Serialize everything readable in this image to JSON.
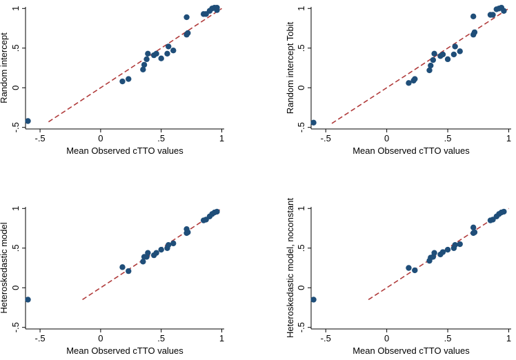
{
  "chart_data": [
    {
      "type": "scatter",
      "xlabel": "Mean Observed cTTO values",
      "ylabel": "Random intercept",
      "xlim": [
        -0.62,
        1.02
      ],
      "ylim": [
        -0.52,
        1.02
      ],
      "xticks": [
        -0.5,
        0,
        0.5,
        1
      ],
      "xtick_labels": [
        "-.5",
        "0",
        ".5",
        "1"
      ],
      "yticks": [
        -0.5,
        0,
        0.5,
        1
      ],
      "ytick_labels": [
        "-.5",
        "0",
        ".5",
        "1"
      ],
      "fit_line": {
        "x": [
          -0.43,
          1.0
        ],
        "y": [
          -0.43,
          1.0
        ]
      },
      "points": {
        "x": [
          -0.6,
          0.18,
          0.23,
          0.35,
          0.36,
          0.38,
          0.39,
          0.44,
          0.46,
          0.5,
          0.55,
          0.56,
          0.6,
          0.71,
          0.71,
          0.72,
          0.85,
          0.87,
          0.9,
          0.92,
          0.94,
          0.96,
          0.96
        ],
        "y": [
          -0.42,
          0.08,
          0.11,
          0.23,
          0.29,
          0.36,
          0.43,
          0.41,
          0.43,
          0.37,
          0.43,
          0.52,
          0.47,
          0.67,
          0.89,
          0.69,
          0.93,
          0.93,
          0.97,
          1.0,
          1.01,
          0.98,
          1.01
        ]
      }
    },
    {
      "type": "scatter",
      "xlabel": "Mean Observed cTTO values",
      "ylabel": "Random intercept Tobit",
      "xlim": [
        -0.62,
        1.02
      ],
      "ylim": [
        -0.52,
        1.02
      ],
      "xticks": [
        -0.5,
        0,
        0.5,
        1
      ],
      "xtick_labels": [
        "-.5",
        "0",
        ".5",
        "1"
      ],
      "yticks": [
        -0.5,
        0,
        0.5,
        1
      ],
      "ytick_labels": [
        "-.5",
        "0",
        ".5",
        "1"
      ],
      "fit_line": {
        "x": [
          -0.45,
          1.0
        ],
        "y": [
          -0.45,
          1.0
        ]
      },
      "points": {
        "x": [
          -0.6,
          0.18,
          0.22,
          0.23,
          0.35,
          0.36,
          0.38,
          0.39,
          0.44,
          0.46,
          0.5,
          0.55,
          0.56,
          0.6,
          0.71,
          0.71,
          0.72,
          0.85,
          0.87,
          0.9,
          0.92,
          0.94,
          0.96
        ],
        "y": [
          -0.44,
          0.06,
          0.09,
          0.11,
          0.22,
          0.28,
          0.35,
          0.43,
          0.4,
          0.42,
          0.36,
          0.42,
          0.52,
          0.46,
          0.67,
          0.9,
          0.7,
          0.92,
          0.92,
          0.99,
          1.0,
          1.01,
          0.97
        ]
      }
    },
    {
      "type": "scatter",
      "xlabel": "Mean Observed cTTO values",
      "ylabel": "Heteroskedastic model",
      "xlim": [
        -0.62,
        1.02
      ],
      "ylim": [
        -0.52,
        1.02
      ],
      "xticks": [
        -0.5,
        0,
        0.5,
        1
      ],
      "xtick_labels": [
        "-.5",
        "0",
        ".5",
        "1"
      ],
      "yticks": [
        -0.5,
        0,
        0.5,
        1
      ],
      "ytick_labels": [
        "-.5",
        "0",
        ".5",
        "1"
      ],
      "fit_line": {
        "x": [
          -0.15,
          1.0
        ],
        "y": [
          -0.15,
          1.0
        ]
      },
      "points": {
        "x": [
          -0.6,
          0.18,
          0.23,
          0.35,
          0.36,
          0.38,
          0.39,
          0.44,
          0.46,
          0.5,
          0.55,
          0.56,
          0.6,
          0.71,
          0.71,
          0.72,
          0.85,
          0.87,
          0.9,
          0.92,
          0.94,
          0.96
        ],
        "y": [
          -0.15,
          0.26,
          0.21,
          0.33,
          0.39,
          0.39,
          0.44,
          0.41,
          0.44,
          0.48,
          0.5,
          0.54,
          0.56,
          0.69,
          0.74,
          0.7,
          0.85,
          0.86,
          0.9,
          0.93,
          0.95,
          0.96
        ]
      }
    },
    {
      "type": "scatter",
      "xlabel": "Mean Observed cTTO values",
      "ylabel": "Heteroskedastic model, noconstant",
      "xlim": [
        -0.62,
        1.02
      ],
      "ylim": [
        -0.52,
        1.02
      ],
      "xticks": [
        -0.5,
        0,
        0.5,
        1
      ],
      "xtick_labels": [
        "-.5",
        "0",
        ".5",
        "1"
      ],
      "yticks": [
        -0.5,
        0,
        0.5,
        1
      ],
      "ytick_labels": [
        "-.5",
        "0",
        ".5",
        "1"
      ],
      "fit_line": {
        "x": [
          -0.15,
          1.0
        ],
        "y": [
          -0.15,
          1.0
        ]
      },
      "points": {
        "x": [
          -0.6,
          0.18,
          0.23,
          0.35,
          0.36,
          0.38,
          0.39,
          0.44,
          0.46,
          0.5,
          0.55,
          0.56,
          0.6,
          0.71,
          0.71,
          0.72,
          0.85,
          0.87,
          0.9,
          0.92,
          0.94,
          0.96
        ],
        "y": [
          -0.15,
          0.25,
          0.22,
          0.34,
          0.38,
          0.39,
          0.44,
          0.42,
          0.45,
          0.48,
          0.5,
          0.54,
          0.55,
          0.69,
          0.76,
          0.7,
          0.85,
          0.86,
          0.9,
          0.93,
          0.95,
          0.96
        ]
      }
    }
  ],
  "colors": {
    "marker": "#1f4e79",
    "fit_line": "#b03a3a",
    "axis": "#000000"
  }
}
